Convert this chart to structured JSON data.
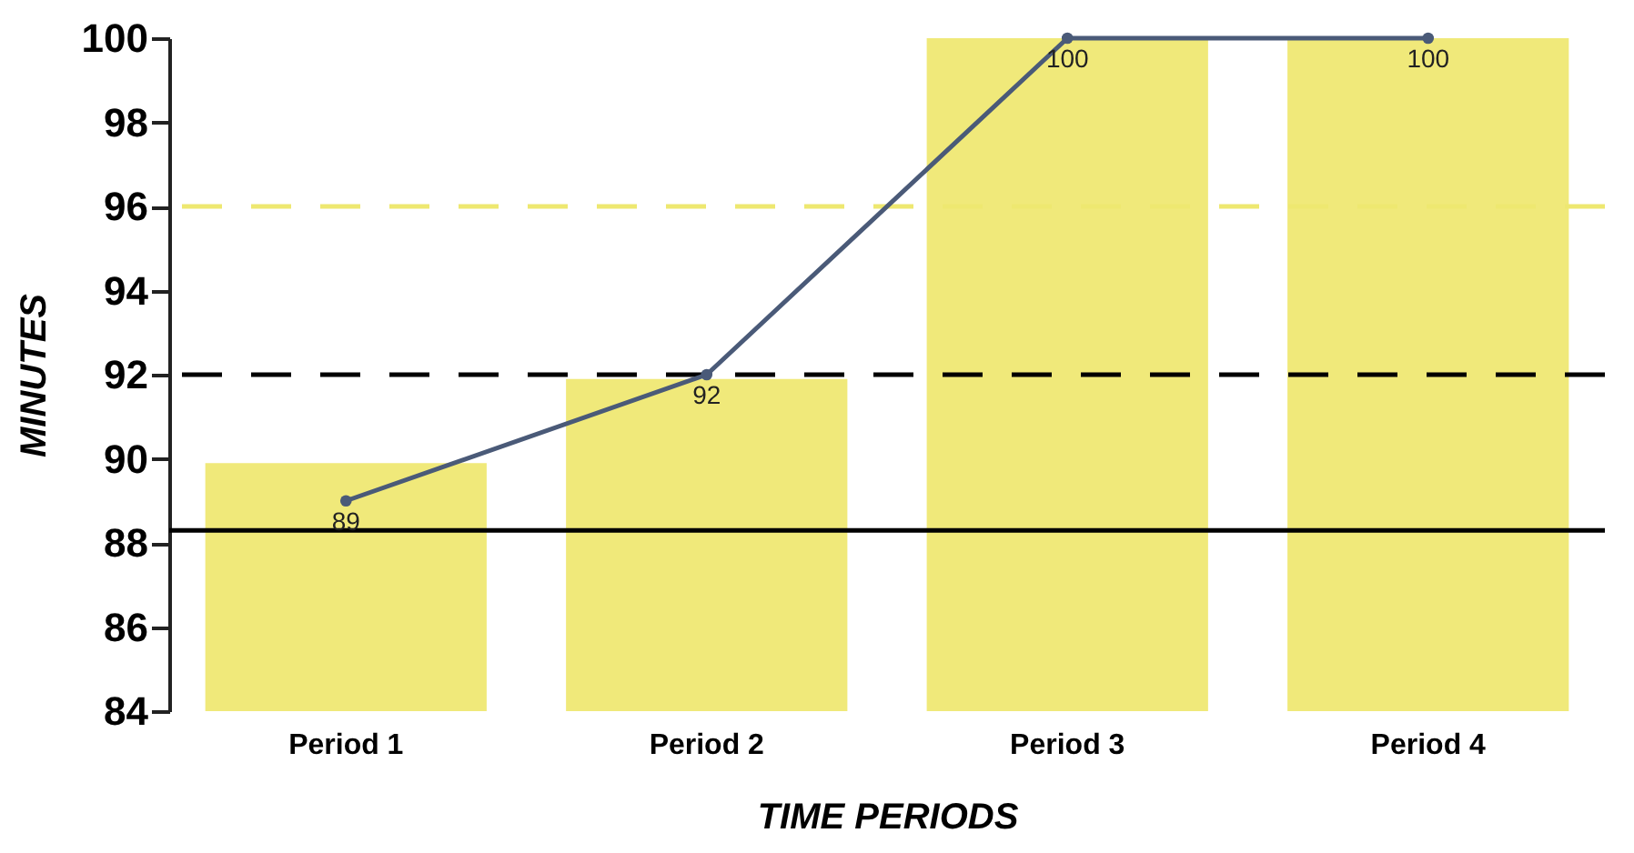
{
  "chart_data": {
    "type": "bar",
    "xlabel": "TIME PERIODS",
    "ylabel": "MINUTES",
    "categories": [
      "Period 1",
      "Period 2",
      "Period 3",
      "Period 4"
    ],
    "series": [
      {
        "color": "#f0e97a",
        "values": [
          89.9,
          91.9,
          100,
          100
        ]
      },
      {
        "type": "line",
        "color": "#4a5a78",
        "values": [
          89,
          92,
          100,
          100
        ],
        "marker": "circle",
        "value_labels": [
          "89",
          "92",
          "100",
          "100"
        ]
      }
    ],
    "ylim": [
      84,
      100
    ],
    "yticks": [
      84,
      86,
      88,
      90,
      92,
      94,
      96,
      98,
      100
    ],
    "grid": false,
    "ref_lines": [
      {
        "axis": "y",
        "value": 96,
        "color": "#eee870",
        "line_style": "dashed"
      },
      {
        "axis": "y",
        "value": 92,
        "color": "#000000",
        "line_style": "dashed"
      },
      {
        "axis": "y",
        "value": 88.3,
        "color": "#000000",
        "line_style": "solid"
      }
    ]
  }
}
